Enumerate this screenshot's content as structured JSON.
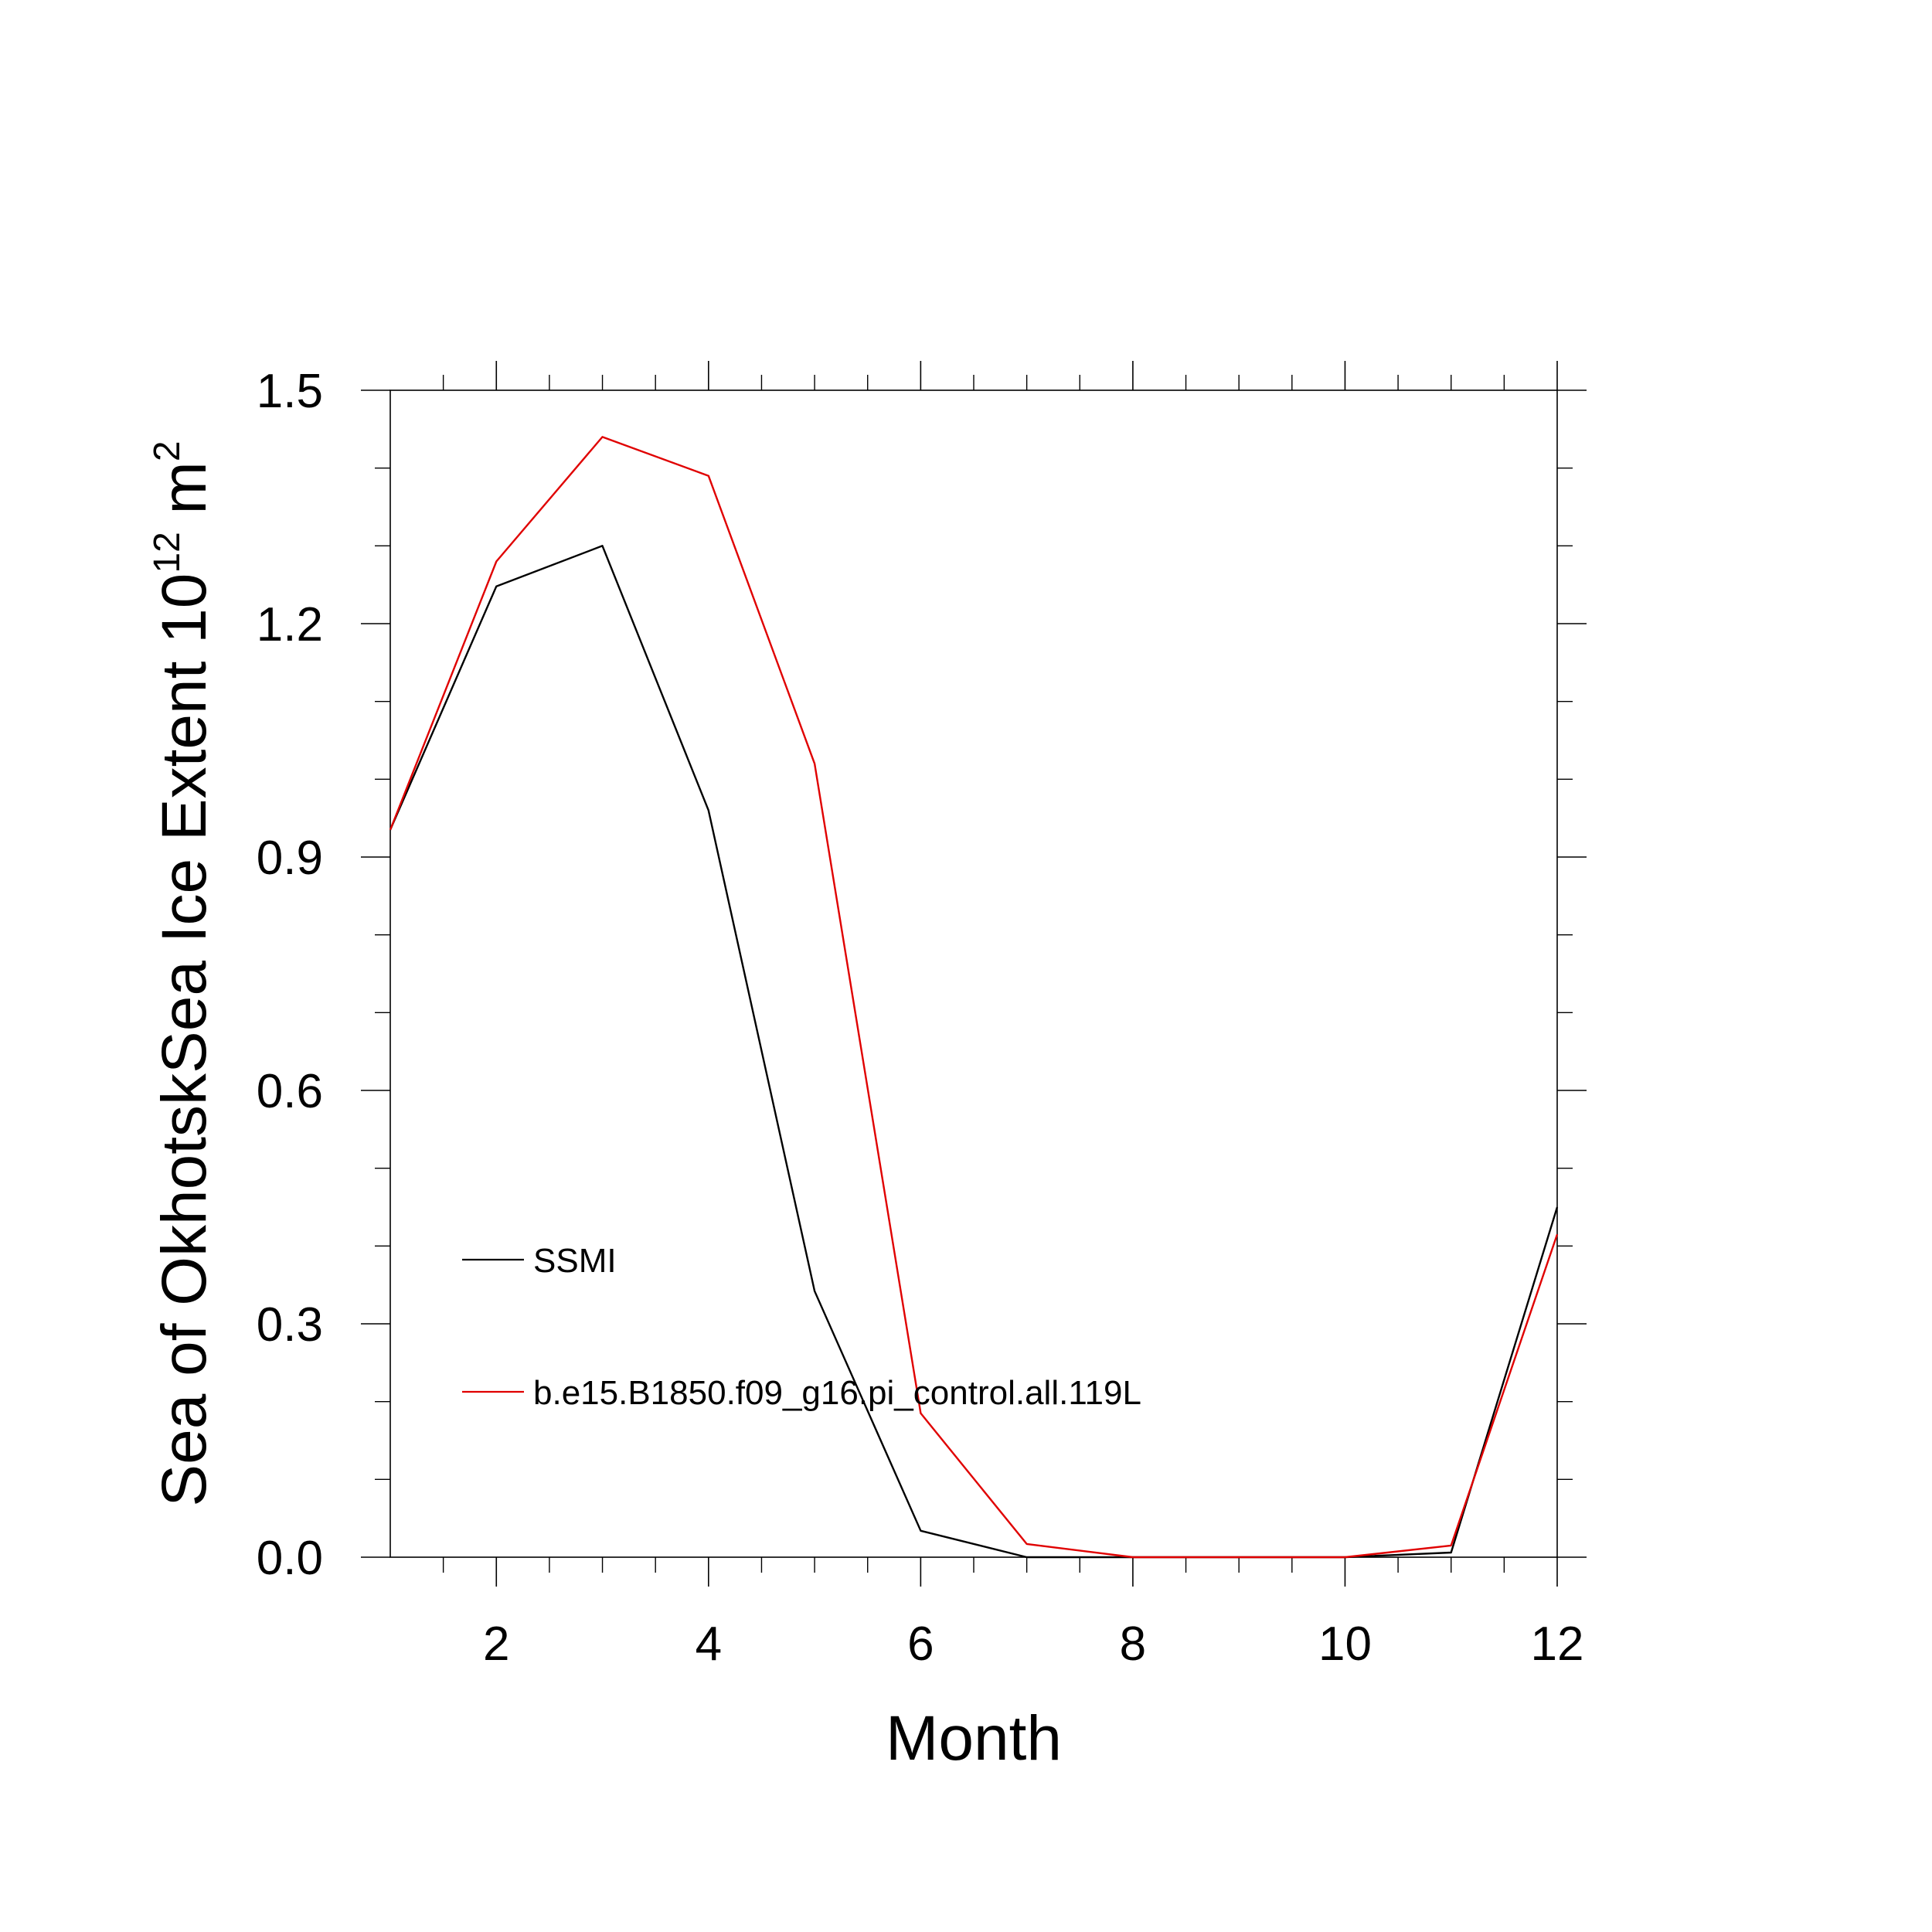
{
  "chart_data": {
    "type": "line",
    "xlabel": "Month",
    "ylabel": {
      "main": "Sea of OkhotskSea Ice Extent 10",
      "exponent": "12",
      "unit": "m",
      "unit_exponent": "2"
    },
    "xlim": [
      1,
      12
    ],
    "ylim": [
      0,
      1.5
    ],
    "x_ticks": [
      2,
      4,
      6,
      8,
      10,
      12
    ],
    "x_tick_labels": [
      "2",
      "4",
      "6",
      "8",
      "10",
      "12"
    ],
    "y_ticks": [
      0.0,
      0.3,
      0.6,
      0.9,
      1.2,
      1.5
    ],
    "y_tick_labels": [
      "0.0",
      "0.3",
      "0.6",
      "0.9",
      "1.2",
      "1.5"
    ],
    "x": [
      1,
      2,
      3,
      4,
      5,
      6,
      7,
      8,
      9,
      10,
      11,
      12
    ],
    "series": [
      {
        "name": "SSMI",
        "color": "#000000",
        "values": [
          0.935,
          1.248,
          1.3,
          0.96,
          0.342,
          0.034,
          0.0,
          0.0,
          0.0,
          0.0,
          0.006,
          0.45
        ]
      },
      {
        "name": "b.e15.B1850.f09_g16.pi_control.all.119L",
        "color": "#e00000",
        "values": [
          0.935,
          1.28,
          1.44,
          1.39,
          1.02,
          0.185,
          0.017,
          0.0,
          0.0,
          0.0,
          0.015,
          0.415
        ]
      }
    ],
    "grid": false,
    "legend_position": "lower-left"
  }
}
